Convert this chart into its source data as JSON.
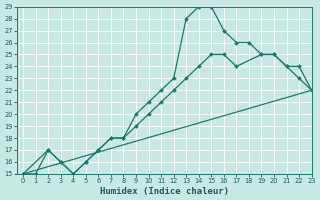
{
  "bg_color": "#c8e8e4",
  "grid_color": "#b0d8d4",
  "line_color": "#1a7a6e",
  "xlabel": "Humidex (Indice chaleur)",
  "xlim": [
    -0.5,
    23
  ],
  "ylim": [
    15,
    29
  ],
  "line1_x": [
    0,
    1,
    2,
    3,
    4,
    5,
    6,
    7,
    8,
    9,
    10,
    11,
    12,
    13,
    14,
    15,
    16,
    17,
    18,
    19,
    20,
    21,
    22,
    23
  ],
  "line1_y": [
    15,
    15,
    17,
    16,
    15,
    16,
    17,
    18,
    18,
    20,
    21,
    22,
    23,
    28,
    29,
    29,
    27,
    26,
    26,
    25,
    25,
    24,
    23,
    22
  ],
  "line2_x": [
    0,
    2,
    3,
    4,
    5,
    6,
    7,
    8,
    9,
    10,
    11,
    12,
    13,
    14,
    15,
    16,
    17,
    19,
    20,
    21,
    22,
    23
  ],
  "line2_y": [
    15,
    17,
    16,
    15,
    16,
    17,
    18,
    18,
    19,
    20,
    21,
    22,
    23,
    24,
    25,
    25,
    24,
    25,
    25,
    24,
    24,
    22
  ],
  "line3_x": [
    0,
    23
  ],
  "line3_y": [
    15,
    22
  ]
}
